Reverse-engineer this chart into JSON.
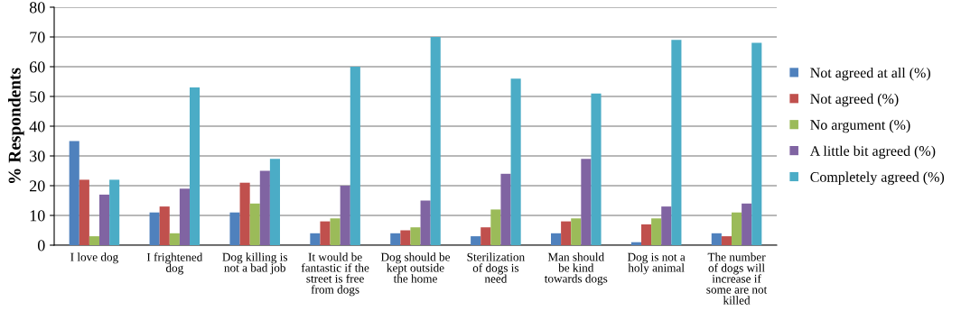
{
  "chart_data": {
    "type": "bar",
    "ylabel": "% Respondents",
    "categories": [
      "I love dog",
      "I frightened\ndog",
      "Dog killing is\nnot a bad job",
      "It would be\nfantastic if the\nstreet is free\nfrom dogs",
      "Dog should be\nkept outside\nthe home",
      "Sterilization\nof dogs is\nneed",
      "Man should\nbe kind\ntowards dogs",
      "Dog is not a\nholy animal",
      "The number\nof dogs will\nincrease if\nsome are not\nkilled"
    ],
    "series": [
      {
        "name": "Not agreed at all (%)",
        "color": "#4f81bd",
        "values": [
          35,
          11,
          11,
          4,
          4,
          3,
          4,
          1,
          4
        ]
      },
      {
        "name": "Not agreed (%)",
        "color": "#c0504d",
        "values": [
          22,
          13,
          21,
          8,
          5,
          6,
          8,
          7,
          3
        ]
      },
      {
        "name": "No argument (%)",
        "color": "#9bbb59",
        "values": [
          3,
          4,
          14,
          9,
          6,
          12,
          9,
          9,
          11
        ]
      },
      {
        "name": "A little bit agreed (%)",
        "color": "#8064a2",
        "values": [
          17,
          19,
          25,
          20,
          15,
          24,
          29,
          13,
          14
        ]
      },
      {
        "name": "Completely agreed (%)",
        "color": "#4bacc6",
        "values": [
          22,
          53,
          29,
          60,
          70,
          56,
          51,
          69,
          68
        ]
      }
    ],
    "ylim": [
      0,
      80
    ],
    "yticks": [
      0,
      10,
      20,
      30,
      40,
      50,
      60,
      70,
      80
    ],
    "grid": "y",
    "legend": "right"
  }
}
